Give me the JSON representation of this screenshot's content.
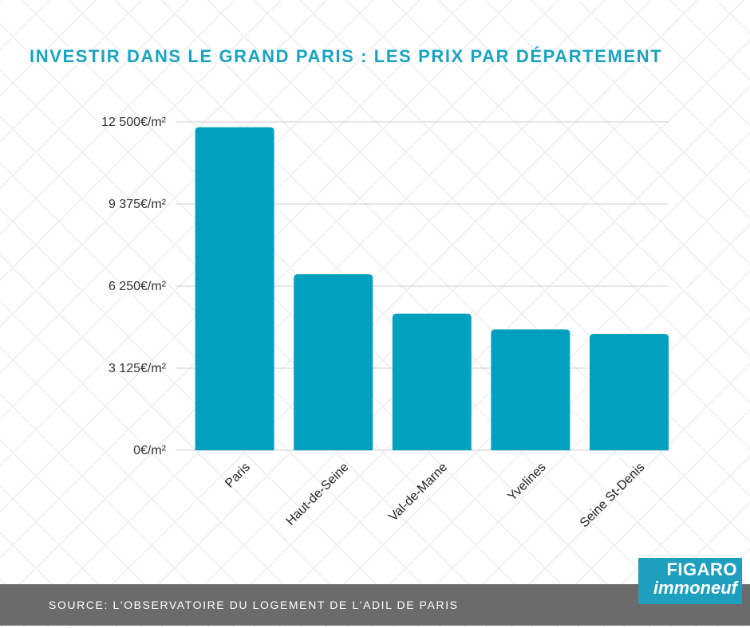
{
  "title": "INVESTIR DANS LE GRAND PARIS : LES PRIX PAR DÉPARTEMENT",
  "footer": {
    "source": "SOURCE: L'OBSERVATOIRE DU LOGEMENT DE L'ADIL DE PARIS"
  },
  "logo": {
    "line1": "FIGARO",
    "line2": "immoneuf"
  },
  "colors": {
    "bar": "#00a0be",
    "title": "#1aa3c0",
    "footer": "#6b6b6b",
    "grid": "#cfcfcf"
  },
  "chart_data": {
    "type": "bar",
    "categories": [
      "Paris",
      "Haut-de-Seine",
      "Val-de-Marne",
      "Yvelines",
      "Seine St-Denis"
    ],
    "values": [
      12300,
      6700,
      5200,
      4600,
      4430
    ],
    "ylim": [
      0,
      12500
    ],
    "yticks": [
      {
        "value": 0,
        "label": "0€/m²"
      },
      {
        "value": 3125,
        "label": "3 125€/m²"
      },
      {
        "value": 6250,
        "label": "6 250€/m²"
      },
      {
        "value": 9375,
        "label": "9 375€/m²"
      },
      {
        "value": 12500,
        "label": "12 500€/m²"
      }
    ],
    "grid": true,
    "xlabel": "",
    "ylabel": ""
  }
}
